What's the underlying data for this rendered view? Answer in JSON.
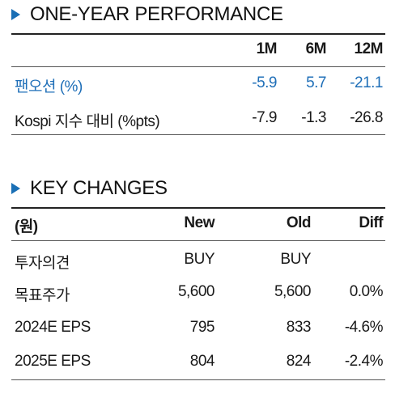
{
  "perf": {
    "title": "ONE-YEAR PERFORMANCE",
    "headers": [
      "1M",
      "6M",
      "12M"
    ],
    "rows": [
      {
        "label": "팬오션 (%)",
        "values": [
          "-5.9",
          "5.7",
          "-21.1"
        ]
      },
      {
        "label": "Kospi 지수 대비 (%pts)",
        "values": [
          "-7.9",
          "-1.3",
          "-26.8"
        ]
      }
    ],
    "highlight_color": "#1f6fb8"
  },
  "changes": {
    "title": "KEY CHANGES",
    "headers": [
      "(원)",
      "New",
      "Old",
      "Diff"
    ],
    "rows": [
      {
        "label": "투자의견",
        "values": [
          "BUY",
          "BUY",
          ""
        ]
      },
      {
        "label": "목표주가",
        "values": [
          "5,600",
          "5,600",
          "0.0%"
        ]
      },
      {
        "label": "2024E EPS",
        "values": [
          "795",
          "833",
          "-4.6%"
        ]
      },
      {
        "label": "2025E EPS",
        "values": [
          "804",
          "824",
          "-2.4%"
        ]
      }
    ]
  }
}
